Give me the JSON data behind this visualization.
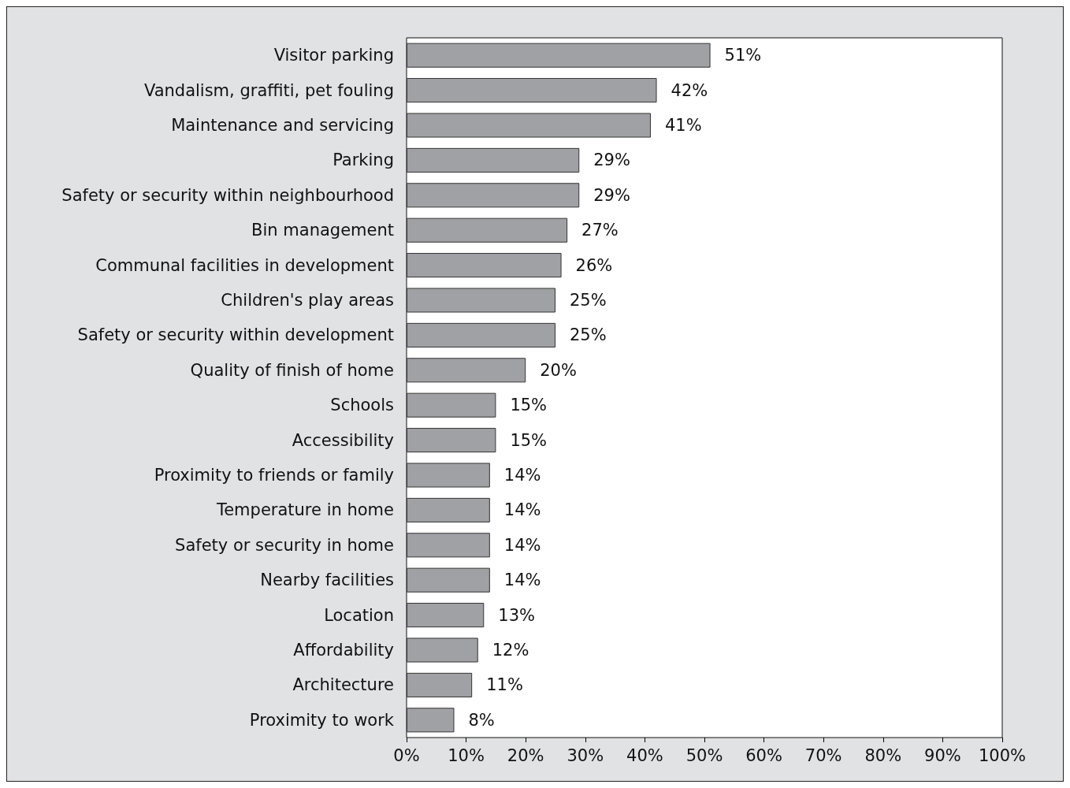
{
  "chart_data": {
    "type": "bar",
    "orientation": "horizontal",
    "categories": [
      "Visitor parking",
      "Vandalism, graffiti, pet fouling",
      "Maintenance and servicing",
      "Parking",
      "Safety or security within neighbourhood",
      "Bin management",
      "Communal facilities in development",
      "Children's play areas",
      "Safety or security within development",
      "Quality of finish of home",
      "Schools",
      "Accessibility",
      "Proximity to friends or family",
      "Temperature in home",
      "Safety or security in home",
      "Nearby facilities",
      "Location",
      "Affordability",
      "Architecture",
      "Proximity to work"
    ],
    "values": [
      51,
      42,
      41,
      29,
      29,
      27,
      26,
      25,
      25,
      20,
      15,
      15,
      14,
      14,
      14,
      14,
      13,
      12,
      11,
      8
    ],
    "value_labels": [
      "51%",
      "42%",
      "41%",
      "29%",
      "29%",
      "27%",
      "26%",
      "25%",
      "25%",
      "20%",
      "15%",
      "15%",
      "14%",
      "14%",
      "14%",
      "14%",
      "13%",
      "12%",
      "11%",
      "8%"
    ],
    "color": "#a0a1a4",
    "xlim": [
      0,
      100
    ],
    "xticks": [
      {
        "value": 0,
        "label": "0%"
      },
      {
        "value": 10,
        "label": "10%"
      },
      {
        "value": 20,
        "label": "20%"
      },
      {
        "value": 30,
        "label": "30%"
      },
      {
        "value": 40,
        "label": "40%"
      },
      {
        "value": 50,
        "label": "50%"
      },
      {
        "value": 60,
        "label": "60%"
      },
      {
        "value": 70,
        "label": "70%"
      },
      {
        "value": 80,
        "label": "80%"
      },
      {
        "value": 90,
        "label": "90%"
      },
      {
        "value": 100,
        "label": "100%"
      }
    ],
    "grid": false
  }
}
